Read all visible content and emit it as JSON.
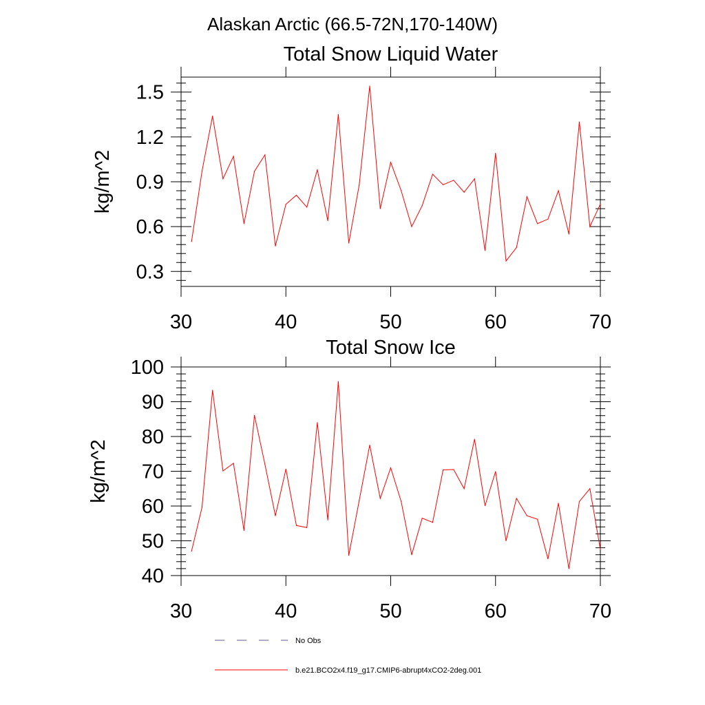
{
  "figure": {
    "suptitle": "Alaskan Arctic (66.5-72N,170-140W)"
  },
  "legend": {
    "items": [
      {
        "label": "No Obs",
        "style": "dashed",
        "color": "#5a5a8c"
      },
      {
        "label": "b.e21.BCO2x4.f19_g17.CMIP6-abrupt4xCO2-2deg.001",
        "style": "solid",
        "color": "#ff0000"
      }
    ]
  },
  "chart_data": [
    {
      "type": "line",
      "title": "Total Snow Liquid Water",
      "ylabel": "kg/m^2",
      "xlim": [
        30,
        70
      ],
      "ylim": [
        0.2,
        1.6
      ],
      "xticks": [
        30,
        40,
        50,
        60,
        70
      ],
      "yticks": [
        0.3,
        0.6,
        0.9,
        1.2,
        1.5
      ],
      "xtick_labels": [
        "30",
        "40",
        "50",
        "60",
        "70"
      ],
      "ytick_labels": [
        "0.3",
        "0.6",
        "0.9",
        "1.2",
        "1.5"
      ],
      "grid": false,
      "series": [
        {
          "color": "#ff0000",
          "x": [
            31,
            32,
            33,
            34,
            35,
            36,
            37,
            38,
            39,
            40,
            41,
            42,
            43,
            44,
            45,
            46,
            47,
            48,
            49,
            50,
            51,
            52,
            53,
            54,
            55,
            56,
            57,
            58,
            59,
            60,
            61,
            62,
            63,
            64,
            65,
            66,
            67,
            68,
            69,
            70
          ],
          "y": [
            0.5,
            0.97,
            1.34,
            0.92,
            1.07,
            0.62,
            0.97,
            1.08,
            0.47,
            0.75,
            0.81,
            0.73,
            0.98,
            0.64,
            1.35,
            0.49,
            0.88,
            1.54,
            0.72,
            1.03,
            0.84,
            0.6,
            0.74,
            0.95,
            0.88,
            0.91,
            0.83,
            0.92,
            0.44,
            1.09,
            0.37,
            0.46,
            0.8,
            0.62,
            0.65,
            0.84,
            0.55,
            1.3,
            0.6,
            0.75
          ]
        }
      ]
    },
    {
      "type": "line",
      "title": "Total Snow Ice",
      "ylabel": "kg/m^2",
      "xlim": [
        30,
        70
      ],
      "ylim": [
        40,
        100
      ],
      "xticks": [
        30,
        40,
        50,
        60,
        70
      ],
      "yticks": [
        40,
        50,
        60,
        70,
        80,
        90,
        100
      ],
      "xtick_labels": [
        "30",
        "40",
        "50",
        "60",
        "70"
      ],
      "ytick_labels": [
        "40",
        "50",
        "60",
        "70",
        "80",
        "90",
        "100"
      ],
      "grid": false,
      "series": [
        {
          "color": "#ff0000",
          "x": [
            31,
            32,
            33,
            34,
            35,
            36,
            37,
            38,
            39,
            40,
            41,
            42,
            43,
            44,
            45,
            46,
            47,
            48,
            49,
            50,
            51,
            52,
            53,
            54,
            55,
            56,
            57,
            58,
            59,
            60,
            61,
            62,
            63,
            64,
            65,
            66,
            67,
            68,
            69,
            70
          ],
          "y": [
            47.0,
            59.6,
            93.3,
            70.1,
            72.3,
            53.0,
            86.1,
            72.0,
            57.2,
            70.6,
            54.4,
            53.8,
            84.0,
            56.0,
            95.8,
            45.8,
            61.6,
            77.5,
            62.2,
            71.0,
            61.3,
            46.0,
            56.5,
            55.3,
            70.4,
            70.5,
            65.0,
            79.2,
            60.1,
            69.9,
            50.0,
            62.2,
            57.2,
            56.2,
            44.8,
            60.8,
            42.0,
            61.3,
            65.0,
            47.5
          ]
        }
      ]
    }
  ]
}
